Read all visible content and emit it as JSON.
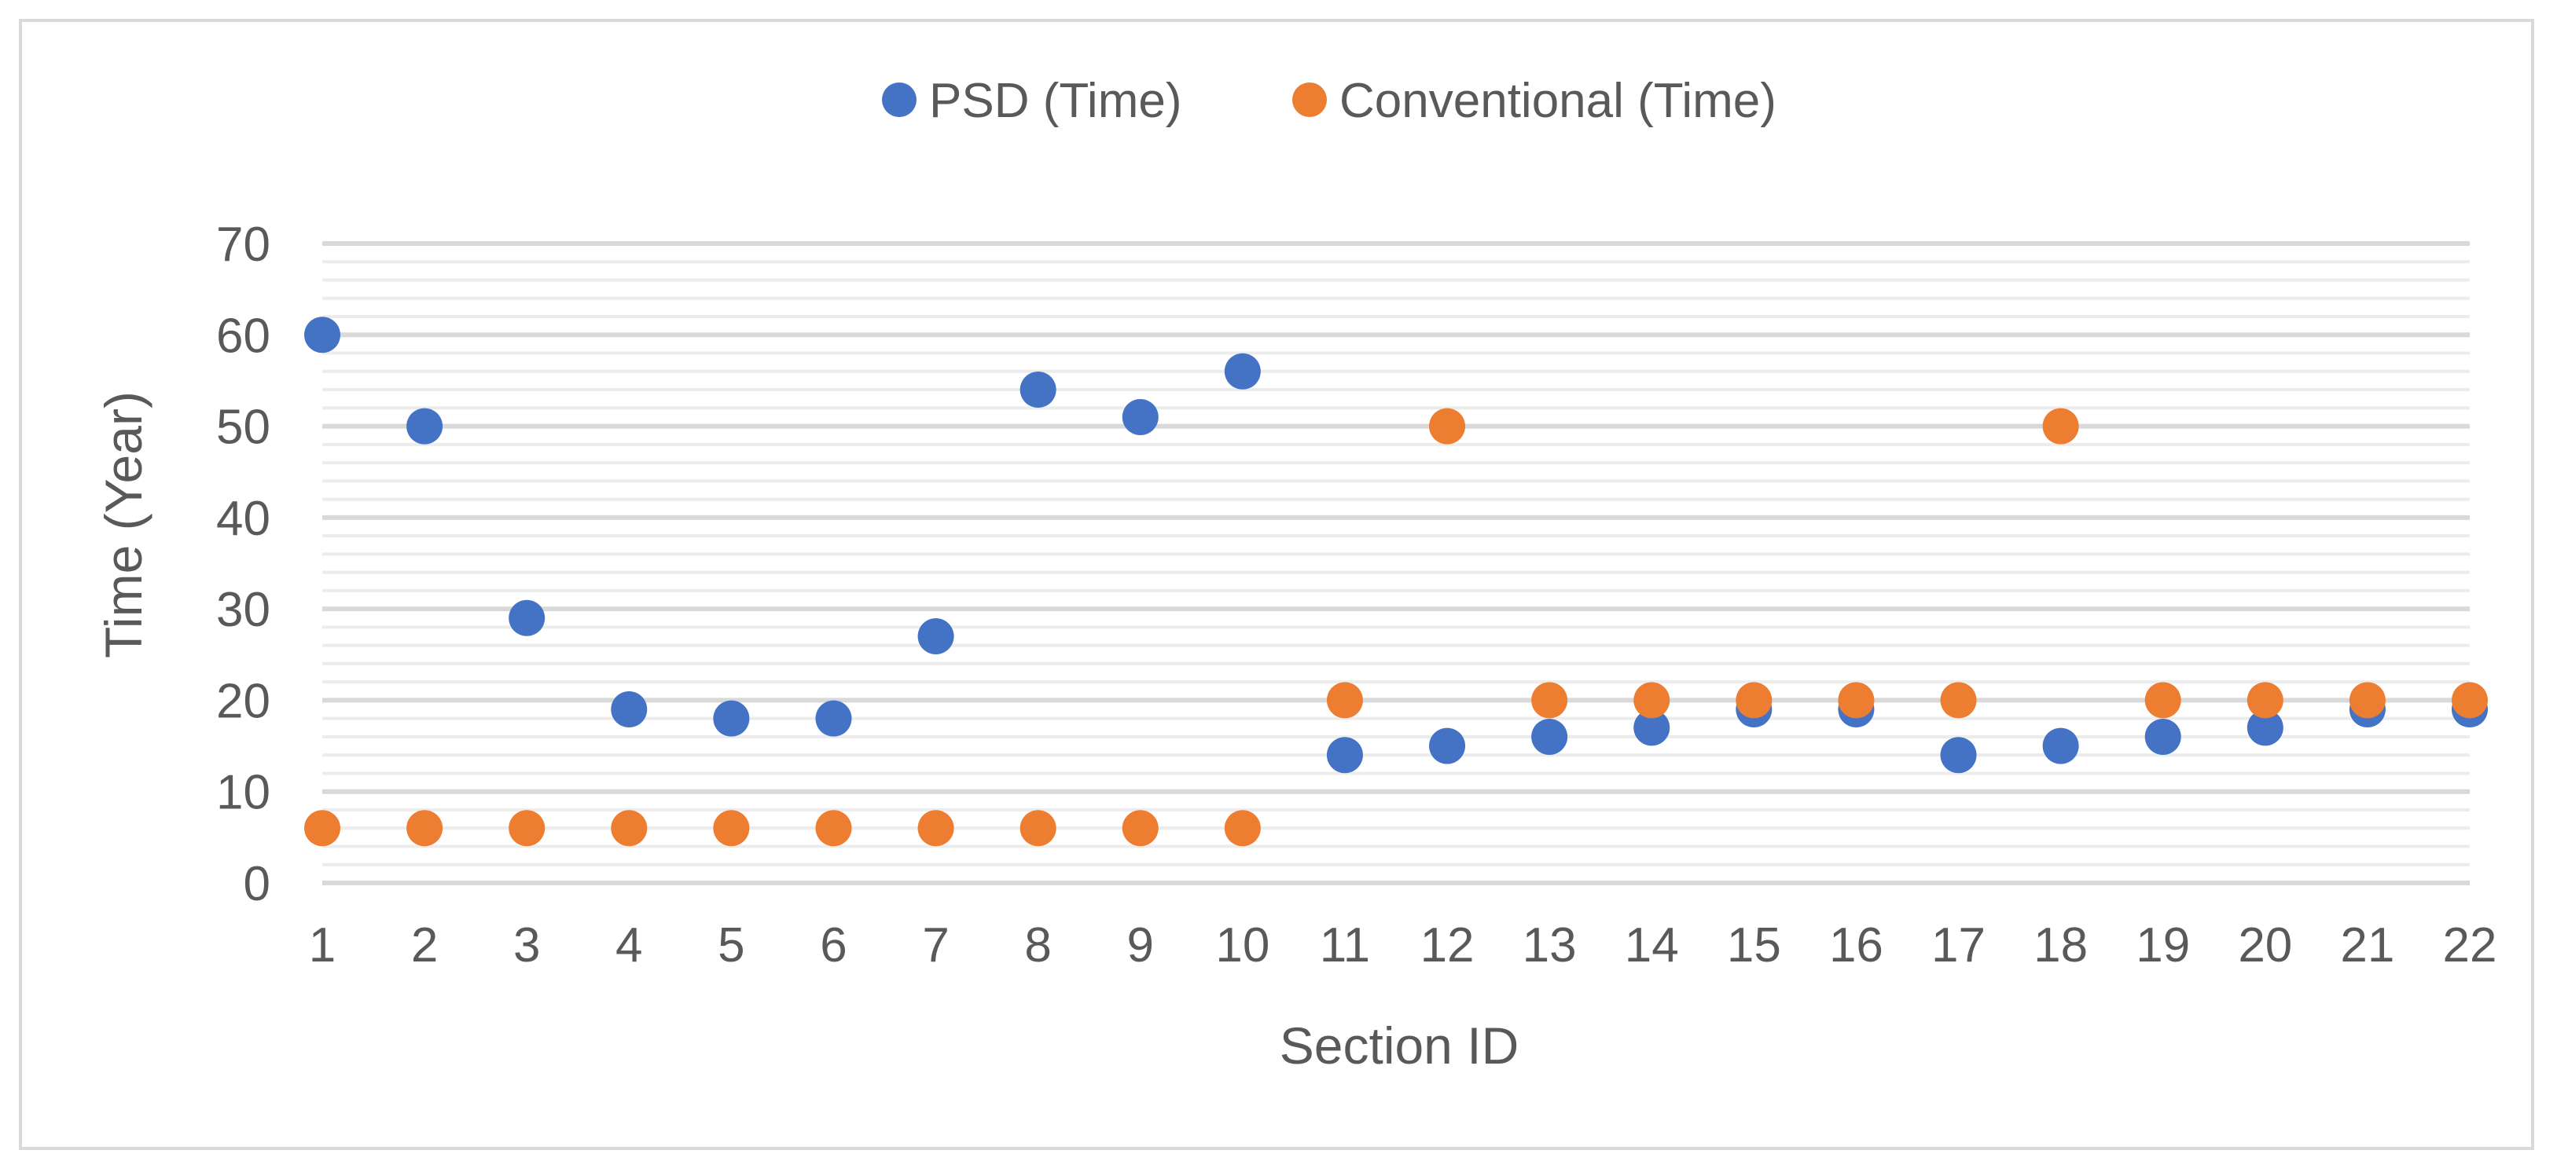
{
  "chart_data": {
    "type": "scatter",
    "title": "",
    "xlabel": "Section ID",
    "ylabel": "Time (Year)",
    "ylim": [
      0,
      70
    ],
    "y_major_ticks": [
      0,
      10,
      20,
      30,
      40,
      50,
      60,
      70
    ],
    "y_minor_step": 2,
    "grid": true,
    "legend_position": "top",
    "x": [
      1,
      2,
      3,
      4,
      5,
      6,
      7,
      8,
      9,
      10,
      11,
      12,
      13,
      14,
      15,
      16,
      17,
      18,
      19,
      20,
      21,
      22
    ],
    "series": [
      {
        "name": "PSD (Time)",
        "color": "#4472c4",
        "values": [
          60,
          50,
          29,
          19,
          18,
          18,
          27,
          54,
          51,
          56,
          14,
          15,
          16,
          17,
          19,
          19,
          14,
          15,
          16,
          17,
          19,
          19
        ]
      },
      {
        "name": "Conventional (Time)",
        "color": "#ed7d31",
        "values": [
          6,
          6,
          6,
          6,
          6,
          6,
          6,
          6,
          6,
          6,
          20,
          50,
          20,
          20,
          20,
          20,
          20,
          50,
          20,
          20,
          20,
          20
        ]
      }
    ]
  }
}
